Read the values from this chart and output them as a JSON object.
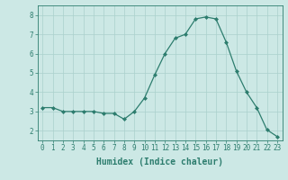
{
  "x": [
    0,
    1,
    2,
    3,
    4,
    5,
    6,
    7,
    8,
    9,
    10,
    11,
    12,
    13,
    14,
    15,
    16,
    17,
    18,
    19,
    20,
    21,
    22,
    23
  ],
  "y": [
    3.2,
    3.2,
    3.0,
    3.0,
    3.0,
    3.0,
    2.9,
    2.9,
    2.6,
    3.0,
    3.7,
    4.9,
    6.0,
    6.8,
    7.0,
    7.8,
    7.9,
    7.8,
    6.6,
    5.1,
    4.0,
    3.2,
    2.05,
    1.7
  ],
  "line_color": "#2d7d6e",
  "marker": "D",
  "marker_size": 2.0,
  "bg_color": "#cce8e5",
  "grid_color": "#aad0cc",
  "xlabel": "Humidex (Indice chaleur)",
  "ylim": [
    1.5,
    8.5
  ],
  "xlim": [
    -0.5,
    23.5
  ],
  "yticks": [
    2,
    3,
    4,
    5,
    6,
    7,
    8
  ],
  "xticks": [
    0,
    1,
    2,
    3,
    4,
    5,
    6,
    7,
    8,
    9,
    10,
    11,
    12,
    13,
    14,
    15,
    16,
    17,
    18,
    19,
    20,
    21,
    22,
    23
  ],
  "tick_label_fontsize": 5.5,
  "xlabel_fontsize": 7.0,
  "tick_color": "#2d7d6e",
  "axis_color": "#2d7d6e",
  "linewidth": 0.9
}
